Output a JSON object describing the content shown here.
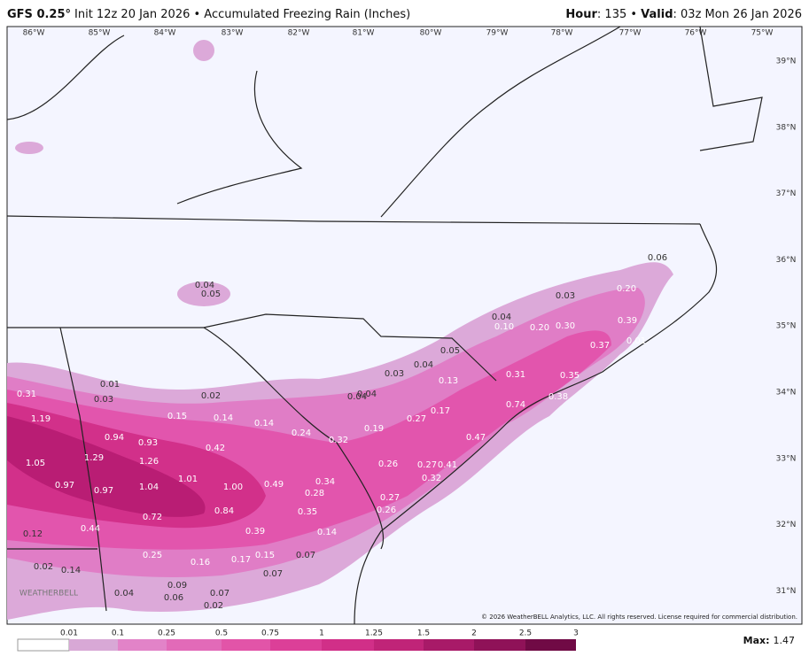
{
  "header": {
    "model": "GFS 0.25°",
    "rest": "Init 12z 20 Jan 2026 • Accumulated Freezing Rain (Inches)",
    "right": [
      {
        "text": "Hour",
        "bold": true
      },
      {
        "text": ": 135 • ",
        "bold": false
      },
      {
        "text": "Valid",
        "bold": true
      },
      {
        "text": ": 03z Mon 26 Jan 2026",
        "bold": false
      }
    ]
  },
  "map": {
    "lon_labels": [
      "86°W",
      "85°W",
      "84°W",
      "83°W",
      "82°W",
      "81°W",
      "80°W",
      "79°W",
      "78°W",
      "77°W",
      "76°W",
      "75°W"
    ],
    "lat_labels": [
      "39°N",
      "38°N",
      "37°N",
      "36°N",
      "35°N",
      "34°N",
      "33°N",
      "32°N",
      "31°N"
    ],
    "point_labels": [
      "0.06",
      "0.20",
      "0.03",
      "0.39",
      "0.04",
      "0.10",
      "0.20",
      "0.30",
      "0.01",
      "0.37",
      "0.05",
      "0.04",
      "0.03",
      "0.31",
      "0.35",
      "0.13",
      "0.04",
      "0.04",
      "0.38",
      "0.74",
      "0.17",
      "0.27",
      "0.19",
      "0.24",
      "0.32",
      "0.47",
      "0.14",
      "0.15",
      "0.14",
      "0.02",
      "0.01",
      "0.03",
      "0.31",
      "1.19",
      "0.94",
      "0.93",
      "0.42",
      "1.05",
      "1.29",
      "1.26",
      "0.26",
      "0.27",
      "0.41",
      "0.32",
      "0.97",
      "0.97",
      "1.04",
      "1.01",
      "1.00",
      "0.49",
      "0.34",
      "0.28",
      "0.27",
      "0.26",
      "0.72",
      "0.84",
      "0.35",
      "0.44",
      "0.12",
      "0.39",
      "0.14",
      "0.25",
      "0.16",
      "0.17",
      "0.15",
      "0.07",
      "0.02",
      "0.14",
      "0.07",
      "0.09",
      "0.04",
      "0.06",
      "0.07",
      "0.02",
      "0.04",
      "0.05"
    ],
    "logo": "WEATHERBELL",
    "copyright": "© 2026 WeatherBELL Analytics, LLC. All rights reserved. License required for commercial distribution."
  },
  "legend": {
    "ticks": [
      "0.01",
      "0.1",
      "0.25",
      "0.5",
      "0.75",
      "1",
      "1.25",
      "1.5",
      "2",
      "2.5",
      "3"
    ],
    "max_label": "Max:",
    "max": "1.47"
  }
}
